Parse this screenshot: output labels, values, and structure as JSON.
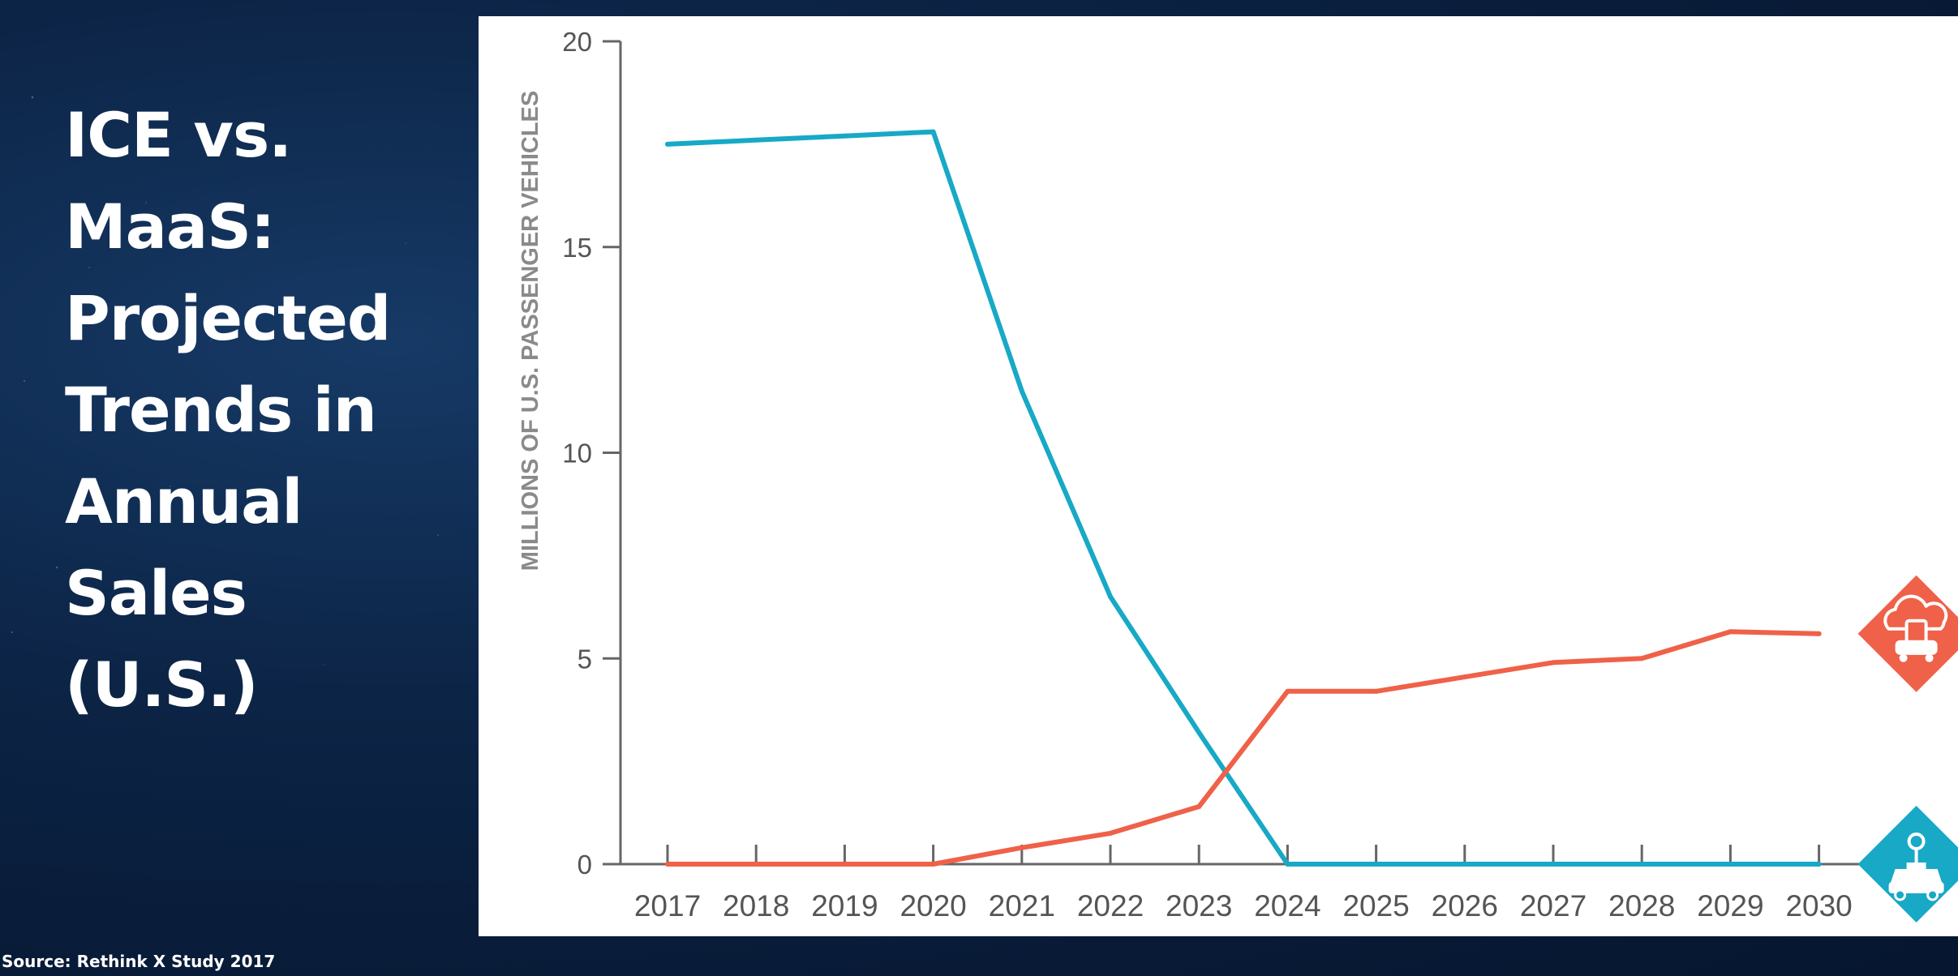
{
  "slide": {
    "title_lines": [
      "ICE vs.",
      "MaaS:",
      "Projected",
      "Trends in",
      "Annual",
      "Sales",
      "(U.S.)"
    ],
    "source": "Source: Rethink X Study 2017"
  },
  "chart_data": {
    "type": "line",
    "title": "ICE vs. MaaS: Projected Trends in Annual Sales (U.S.)",
    "ylabel": "MILLIONS OF U.S. PASSENGER VEHICLES",
    "xlabel": "",
    "x": [
      "2017",
      "2018",
      "2019",
      "2020",
      "2021",
      "2022",
      "2023",
      "2024",
      "2025",
      "2026",
      "2027",
      "2028",
      "2029",
      "2030"
    ],
    "yticks": [
      "0",
      "5",
      "10",
      "15",
      "20"
    ],
    "ylim": [
      0,
      20
    ],
    "grid": false,
    "series": [
      {
        "color": "#17a9c6",
        "end_icon": "car-key-icon",
        "values": [
          17.5,
          17.6,
          17.7,
          17.8,
          11.5,
          6.5,
          3.2,
          0,
          0,
          0,
          0,
          0,
          0,
          0
        ]
      },
      {
        "color": "#ef6148",
        "end_icon": "cloud-phone-car-icon",
        "values": [
          0,
          0,
          0,
          0,
          0.4,
          0.75,
          1.4,
          4.2,
          4.2,
          4.55,
          4.9,
          5.0,
          5.65,
          5.6
        ]
      }
    ]
  }
}
